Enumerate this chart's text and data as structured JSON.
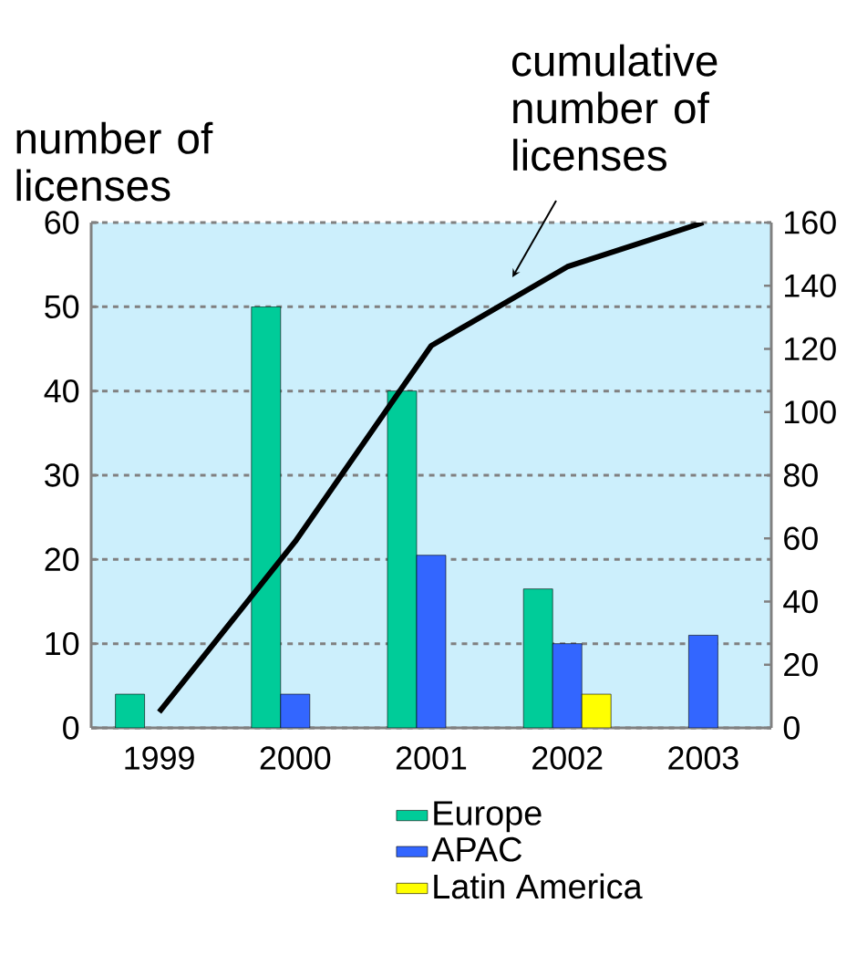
{
  "chart_data": {
    "type": "bar",
    "ylabel": "number of licenses",
    "y2label": "cumulative number of licenses",
    "categories": [
      "1999",
      "2000",
      "2001",
      "2002",
      "2003"
    ],
    "series": [
      {
        "name": "Europe",
        "color": "#00cc99",
        "values": [
          4,
          50,
          40,
          16.5,
          null
        ]
      },
      {
        "name": "APAC",
        "color": "#3366ff",
        "values": [
          null,
          4,
          20.5,
          10,
          11
        ]
      },
      {
        "name": "Latin America",
        "color": "#ffff00",
        "values": [
          null,
          null,
          null,
          4,
          null
        ]
      },
      {
        "type": "line",
        "axis": "y2",
        "color": "#000000",
        "values": [
          5,
          59,
          121,
          146,
          160
        ]
      }
    ],
    "ylim": [
      0,
      60
    ],
    "yticks": [
      0,
      10,
      20,
      30,
      40,
      50,
      60
    ],
    "y2lim": [
      0,
      160
    ],
    "y2ticks": [
      0,
      20,
      40,
      60,
      80,
      100,
      120,
      140,
      160
    ],
    "grid": "y",
    "legend": "bottom",
    "marker": "none",
    "line_style": "solid"
  }
}
